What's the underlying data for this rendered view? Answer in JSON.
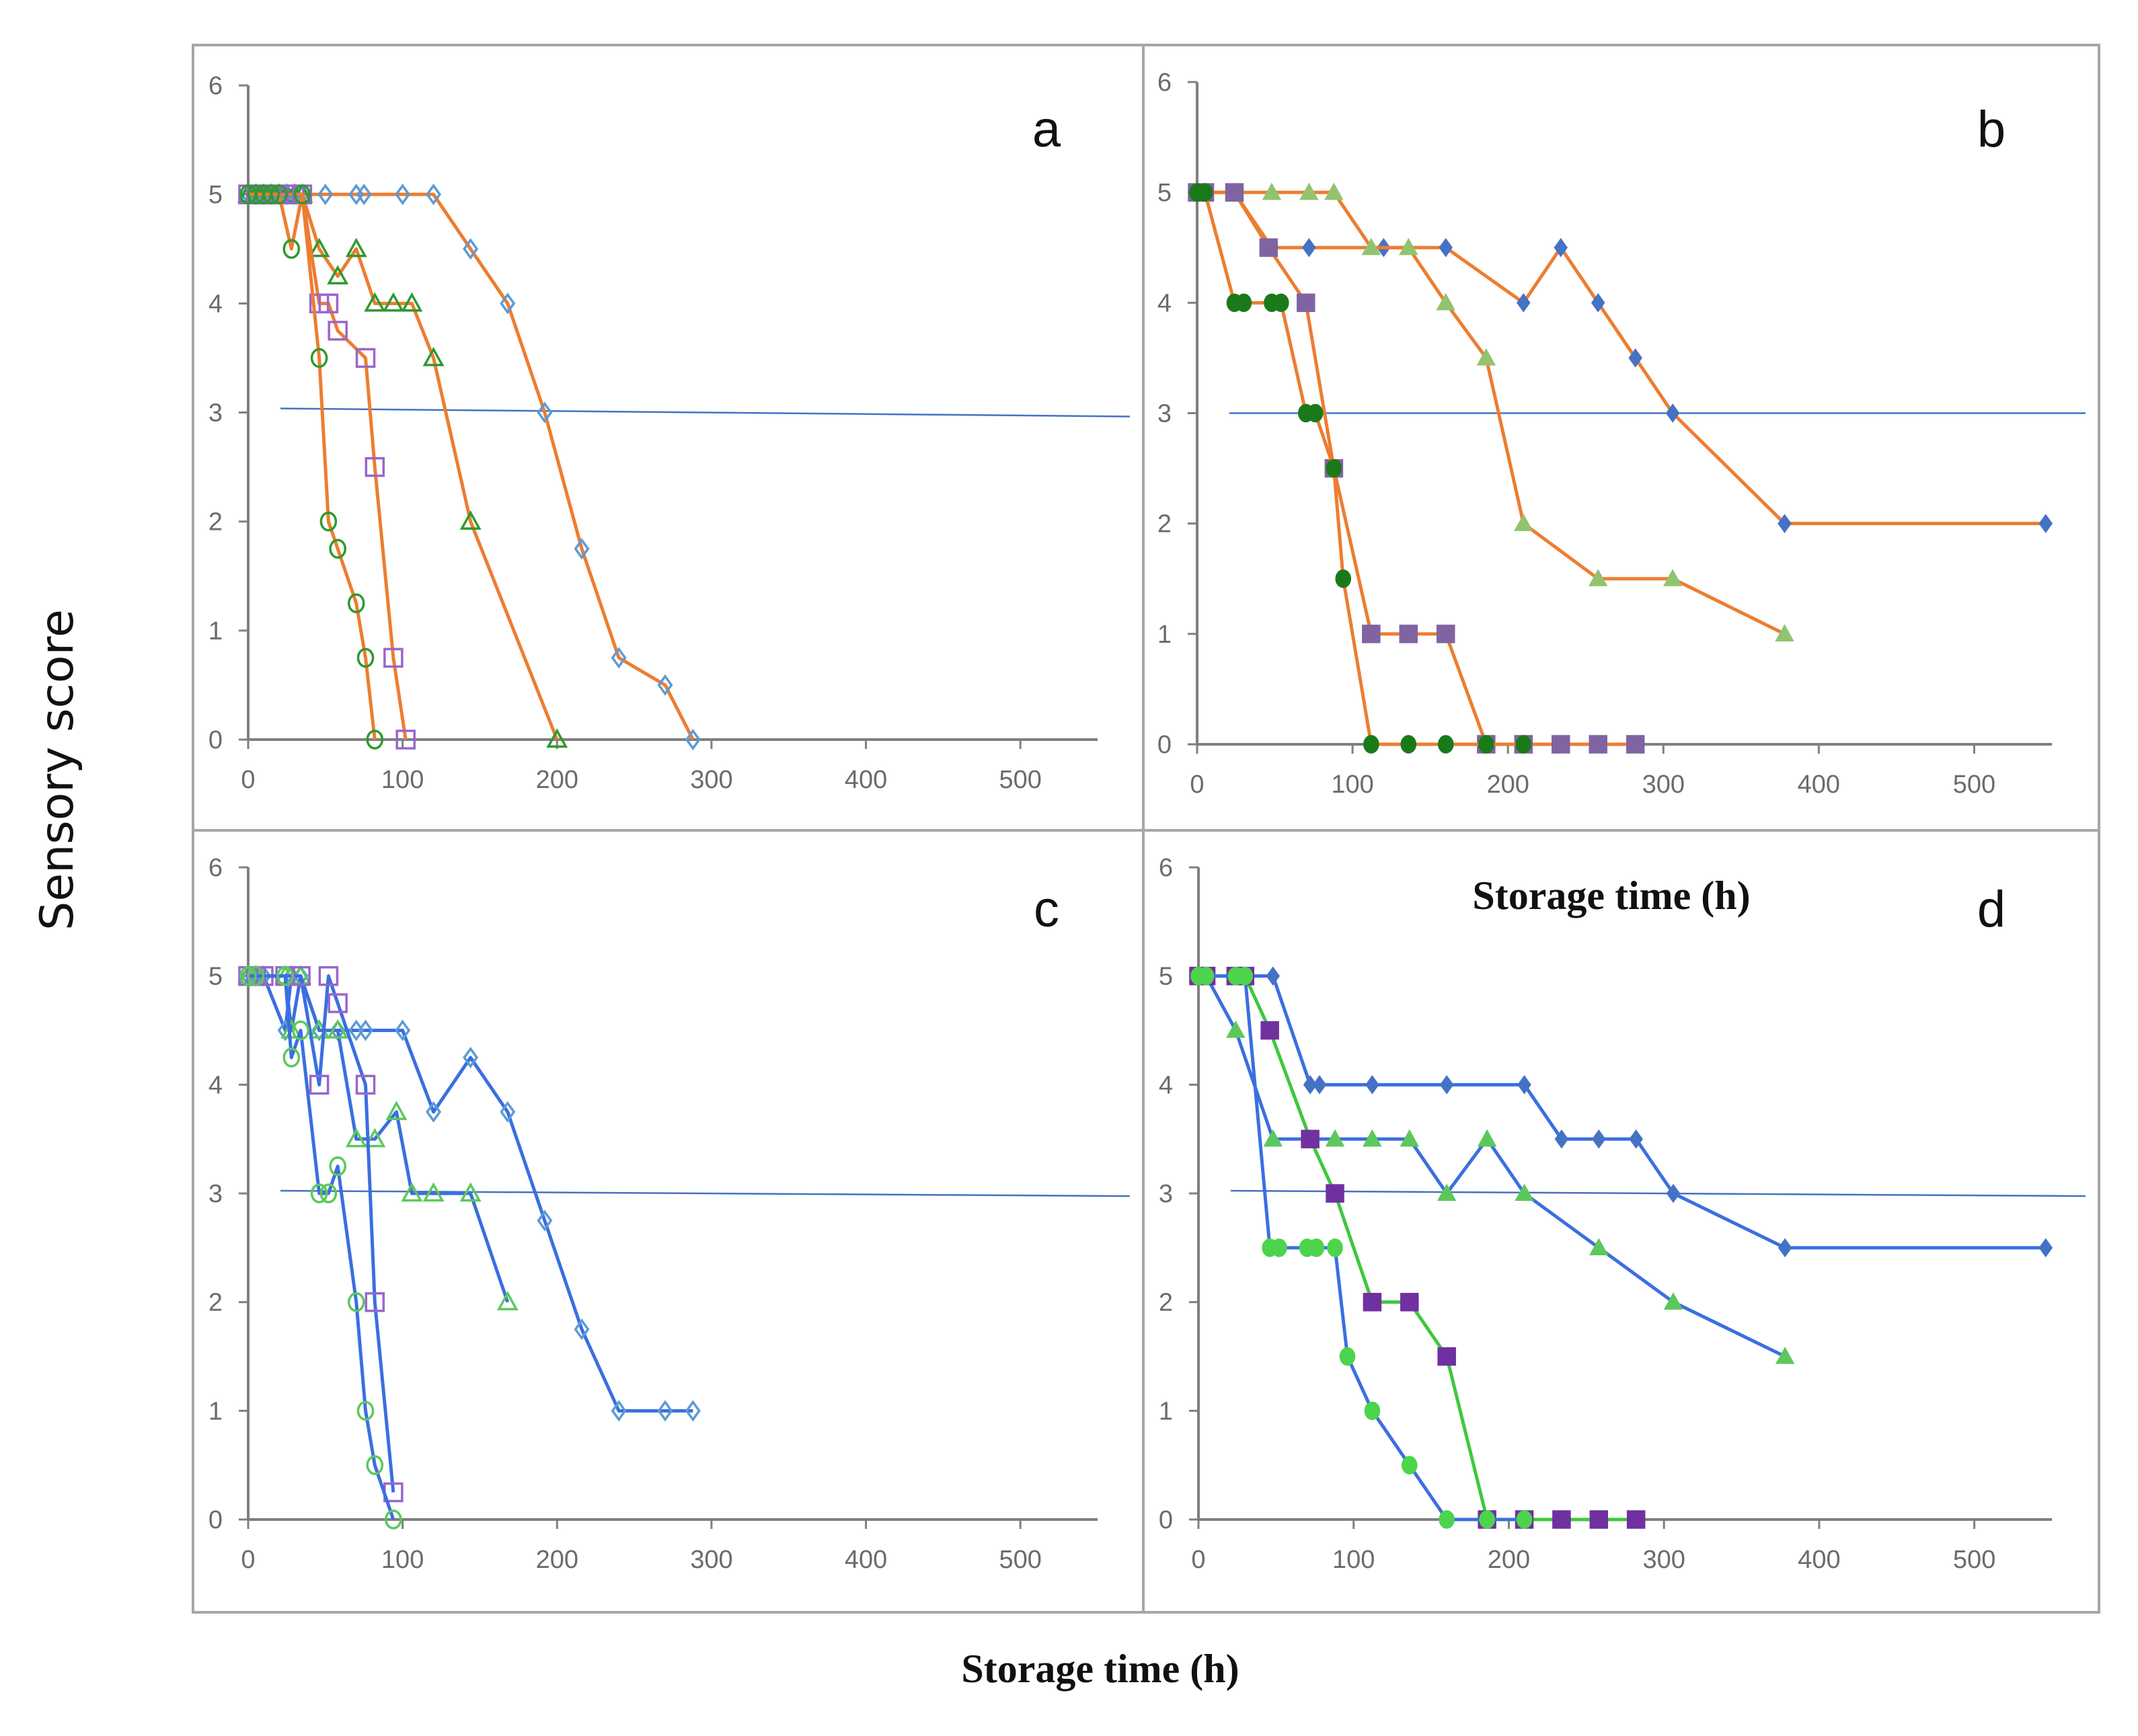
{
  "figure": {
    "y_axis_title": "Sensory score",
    "x_axis_title_bottom": "Storage time (h)",
    "x_axis_title_inner": "Storage time (h)"
  },
  "chart_data": [
    {
      "id": "a",
      "type": "line",
      "panel_label": "a",
      "xlim": [
        0,
        550
      ],
      "ylim": [
        0,
        6
      ],
      "x_ticks": [
        0,
        100,
        200,
        300,
        400,
        500
      ],
      "y_ticks": [
        0,
        1,
        2,
        3,
        4,
        5,
        6
      ],
      "x_tick_labels": [
        "0",
        "100",
        "200",
        "300",
        "400",
        "500"
      ],
      "y_tick_labels": [
        "0",
        "1",
        "2",
        "3",
        "4",
        "5",
        "6"
      ],
      "threshold": 3,
      "threshold_color": "#4472c4",
      "series": [
        {
          "name": "diamond",
          "marker": "diamond-open",
          "line_color": "#ed7d31",
          "marker_color": "#5b9bd5",
          "x": [
            0,
            5,
            10,
            15,
            20,
            25,
            30,
            35,
            50,
            70,
            75,
            100,
            120,
            144,
            168,
            192,
            216,
            240,
            270,
            288
          ],
          "y": [
            5,
            5,
            5,
            5,
            5,
            5,
            5,
            5,
            5,
            5,
            5,
            5,
            5,
            4.5,
            4,
            3,
            1.75,
            0.75,
            0.5,
            0
          ]
        },
        {
          "name": "triangle",
          "marker": "triangle-open",
          "line_color": "#ed7d31",
          "marker_color": "#2e9a2e",
          "x": [
            0,
            5,
            10,
            15,
            20,
            25,
            30,
            35,
            46,
            58,
            70,
            82,
            94,
            106,
            120,
            144,
            200
          ],
          "y": [
            5,
            5,
            5,
            5,
            5,
            5,
            5,
            5,
            4.5,
            4.25,
            4.5,
            4,
            4,
            4,
            3.5,
            2,
            0
          ]
        },
        {
          "name": "square",
          "marker": "square-open",
          "line_color": "#ed7d31",
          "marker_color": "#9966cc",
          "x": [
            0,
            5,
            10,
            15,
            20,
            25,
            30,
            35,
            46,
            52,
            58,
            76,
            82,
            94,
            102
          ],
          "y": [
            5,
            5,
            5,
            5,
            5,
            5,
            5,
            5,
            4,
            4,
            3.75,
            3.5,
            2.5,
            0.75,
            0
          ]
        },
        {
          "name": "circle",
          "marker": "circle-open",
          "line_color": "#ed7d31",
          "marker_color": "#2e9a2e",
          "x": [
            0,
            5,
            10,
            15,
            20,
            28,
            35,
            46,
            52,
            58,
            70,
            76,
            82
          ],
          "y": [
            5,
            5,
            5,
            5,
            5,
            4.5,
            5,
            3.5,
            2,
            1.75,
            1.25,
            0.75,
            0
          ]
        }
      ]
    },
    {
      "id": "b",
      "type": "line",
      "panel_label": "b",
      "xlim": [
        0,
        550
      ],
      "ylim": [
        0,
        6
      ],
      "x_ticks": [
        0,
        100,
        200,
        300,
        400,
        500
      ],
      "y_ticks": [
        0,
        1,
        2,
        3,
        4,
        5,
        6
      ],
      "x_tick_labels": [
        "0",
        "100",
        "200",
        "300",
        "400",
        "500"
      ],
      "y_tick_labels": [
        "0",
        "1",
        "2",
        "3",
        "4",
        "5",
        "6"
      ],
      "threshold": 3,
      "threshold_color": "#4472c4",
      "series": [
        {
          "name": "diamond",
          "marker": "diamond-filled",
          "line_color": "#ed7d31",
          "marker_color": "#4472c4",
          "x": [
            0,
            5,
            24,
            48,
            72,
            120,
            160,
            210,
            234,
            258,
            282,
            306,
            378,
            546
          ],
          "y": [
            5,
            5,
            5,
            4.5,
            4.5,
            4.5,
            4.5,
            4,
            4.5,
            4,
            3.5,
            3,
            2,
            2
          ]
        },
        {
          "name": "triangle",
          "marker": "triangle-filled",
          "line_color": "#ed7d31",
          "marker_color": "#92c36f",
          "x": [
            0,
            5,
            24,
            48,
            72,
            88,
            112,
            136,
            160,
            186,
            210,
            258,
            306,
            378
          ],
          "y": [
            5,
            5,
            5,
            5,
            5,
            5,
            4.5,
            4.5,
            4,
            3.5,
            2,
            1.5,
            1.5,
            1
          ]
        },
        {
          "name": "square",
          "marker": "square-filled",
          "line_color": "#ed7d31",
          "marker_color": "#8064a2",
          "x": [
            0,
            5,
            24,
            46,
            70,
            88,
            112,
            136,
            160,
            186,
            210,
            234,
            258,
            282
          ],
          "y": [
            5,
            5,
            5,
            4.5,
            4,
            2.5,
            1,
            1,
            1,
            0,
            0,
            0,
            0,
            0
          ]
        },
        {
          "name": "circle",
          "marker": "circle-filled",
          "line_color": "#ed7d31",
          "marker_color": "#1a7a1a",
          "x": [
            0,
            5,
            24,
            30,
            48,
            54,
            70,
            76,
            88,
            94,
            112,
            136,
            160,
            186,
            210
          ],
          "y": [
            5,
            5,
            4,
            4,
            4,
            4,
            3,
            3,
            2.5,
            1.5,
            0,
            0,
            0,
            0,
            0
          ]
        }
      ]
    },
    {
      "id": "c",
      "type": "line",
      "panel_label": "c",
      "xlim": [
        0,
        550
      ],
      "ylim": [
        0,
        6
      ],
      "x_ticks": [
        0,
        100,
        200,
        300,
        400,
        500
      ],
      "y_ticks": [
        0,
        1,
        2,
        3,
        4,
        5,
        6
      ],
      "x_tick_labels": [
        "0",
        "100",
        "200",
        "300",
        "400",
        "500"
      ],
      "y_tick_labels": [
        "0",
        "1",
        "2",
        "3",
        "4",
        "5",
        "6"
      ],
      "threshold": 3,
      "threshold_color": "#4472c4",
      "series": [
        {
          "name": "diamond",
          "marker": "diamond-open",
          "line_color": "#3b6fe0",
          "marker_color": "#5b9bd5",
          "x": [
            0,
            5,
            10,
            24,
            28,
            34,
            46,
            58,
            70,
            76,
            100,
            120,
            144,
            168,
            192,
            216,
            240,
            270,
            288
          ],
          "y": [
            5,
            5,
            5,
            4.5,
            5,
            5,
            4.5,
            4.5,
            4.5,
            4.5,
            4.5,
            3.75,
            4.25,
            3.75,
            2.75,
            1.75,
            1,
            1,
            1
          ]
        },
        {
          "name": "triangle",
          "marker": "triangle-open",
          "line_color": "#3b6fe0",
          "marker_color": "#5cc85c",
          "x": [
            0,
            5,
            24,
            28,
            34,
            46,
            58,
            70,
            82,
            96,
            106,
            120,
            144,
            168
          ],
          "y": [
            5,
            5,
            5,
            4.5,
            5,
            4.5,
            4.5,
            3.5,
            3.5,
            3.75,
            3,
            3,
            3,
            2
          ]
        },
        {
          "name": "square",
          "marker": "square-open",
          "line_color": "#3b6fe0",
          "marker_color": "#9966cc",
          "x": [
            0,
            5,
            10,
            24,
            34,
            46,
            52,
            58,
            76,
            82,
            94
          ],
          "y": [
            5,
            5,
            5,
            5,
            5,
            4,
            5,
            4.75,
            4,
            2,
            0.25
          ]
        },
        {
          "name": "circle",
          "marker": "circle-open",
          "line_color": "#3b6fe0",
          "marker_color": "#5cc85c",
          "x": [
            0,
            5,
            24,
            28,
            34,
            46,
            52,
            58,
            70,
            76,
            82,
            94
          ],
          "y": [
            5,
            5,
            5,
            4.25,
            4.5,
            3,
            3,
            3.25,
            2,
            1,
            0.5,
            0
          ]
        }
      ]
    },
    {
      "id": "d",
      "type": "line",
      "panel_label": "d",
      "xlim": [
        0,
        550
      ],
      "ylim": [
        0,
        6
      ],
      "x_ticks": [
        0,
        100,
        200,
        300,
        400,
        500
      ],
      "y_ticks": [
        0,
        1,
        2,
        3,
        4,
        5,
        6
      ],
      "x_tick_labels": [
        "0",
        "100",
        "200",
        "300",
        "400",
        "500"
      ],
      "y_tick_labels": [
        "0",
        "1",
        "2",
        "3",
        "4",
        "5",
        "6"
      ],
      "threshold": 3,
      "threshold_color": "#4472c4",
      "series": [
        {
          "name": "diamond",
          "marker": "diamond-filled",
          "line_color": "#3b6fe0",
          "marker_color": "#4472c4",
          "x": [
            0,
            5,
            24,
            30,
            48,
            72,
            78,
            112,
            160,
            210,
            234,
            258,
            282,
            306,
            378,
            546
          ],
          "y": [
            5,
            5,
            5,
            5,
            5,
            4,
            4,
            4,
            4,
            4,
            3.5,
            3.5,
            3.5,
            3,
            2.5,
            2.5
          ]
        },
        {
          "name": "triangle",
          "marker": "triangle-filled",
          "line_color": "#3b6fe0",
          "marker_color": "#5cc85c",
          "x": [
            0,
            5,
            24,
            48,
            72,
            88,
            112,
            136,
            160,
            186,
            210,
            258,
            306,
            378
          ],
          "y": [
            5,
            5,
            4.5,
            3.5,
            3.5,
            3.5,
            3.5,
            3.5,
            3,
            3.5,
            3,
            2.5,
            2,
            1.5
          ]
        },
        {
          "name": "square",
          "marker": "square-filled",
          "line_color": "#3ec83e",
          "marker_color": "#7030a0",
          "x": [
            0,
            5,
            24,
            30,
            46,
            72,
            88,
            112,
            136,
            160,
            186,
            210,
            234,
            258,
            282
          ],
          "y": [
            5,
            5,
            5,
            5,
            4.5,
            3.5,
            3,
            2,
            2,
            1.5,
            0,
            0,
            0,
            0,
            0
          ]
        },
        {
          "name": "circle",
          "marker": "circle-filled",
          "line_color": "#3b6fe0",
          "marker_color": "#4cd44c",
          "x": [
            0,
            5,
            24,
            30,
            46,
            52,
            70,
            76,
            88,
            96,
            112,
            136,
            160,
            186,
            210
          ],
          "y": [
            5,
            5,
            5,
            5,
            2.5,
            2.5,
            2.5,
            2.5,
            2.5,
            1.5,
            1,
            0.5,
            0,
            0,
            0
          ]
        }
      ]
    }
  ]
}
